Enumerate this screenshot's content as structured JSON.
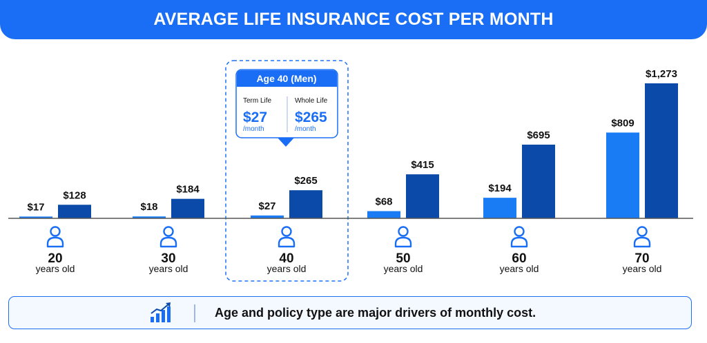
{
  "header": {
    "title": "AVERAGE LIFE INSURANCE COST PER MONTH"
  },
  "colors": {
    "term": "#1a7cf5",
    "whole": "#0b4aa8",
    "accent": "#1a6ef5"
  },
  "chart_data": {
    "type": "bar",
    "categories": [
      "20",
      "30",
      "40",
      "50",
      "60",
      "70"
    ],
    "category_sublabel": "years old",
    "series": [
      {
        "key": "term",
        "values": [
          17,
          18,
          27,
          68,
          194,
          809
        ],
        "labels": [
          "$17",
          "$18",
          "$27",
          "$68",
          "$194",
          "$809"
        ]
      },
      {
        "key": "whole",
        "values": [
          128,
          184,
          265,
          415,
          695,
          1273
        ],
        "labels": [
          "$128",
          "$184",
          "$265",
          "$415",
          "$695",
          "$1,273"
        ]
      }
    ],
    "ylim": [
      0,
      1273
    ],
    "grid": false,
    "legend": "none",
    "highlight_category": "40"
  },
  "callout": {
    "title": "Age 40 (Men)",
    "term_label": "Term Life",
    "term_value": "$27",
    "term_unit": "/month",
    "whole_label": "Whole Life",
    "whole_value": "$265",
    "whole_unit": "/month"
  },
  "footer": {
    "text": "Age and policy type are major drivers of monthly cost.",
    "icon": "growth-chart-icon"
  }
}
